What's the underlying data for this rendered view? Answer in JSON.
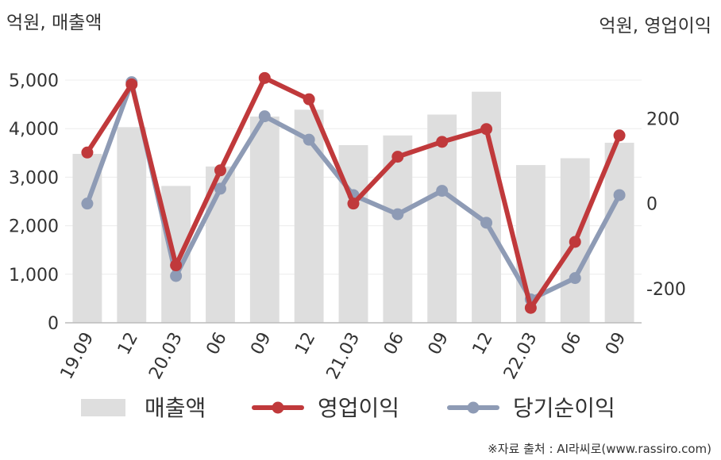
{
  "chart_data": {
    "type": "bar+line",
    "y_left_unit": "억원, 매출액",
    "y_right_unit": "억원, 영업이익",
    "categories": [
      "19.09",
      "12",
      "20.03",
      "06",
      "09",
      "12",
      "21.03",
      "06",
      "09",
      "12",
      "22.03",
      "06",
      "09"
    ],
    "y_left_ticks": [
      "0",
      "1,000",
      "2,000",
      "3,000",
      "4,000",
      "5,000"
    ],
    "y_left_range": [
      0,
      5000
    ],
    "y_right_ticks": [
      "-200",
      "0",
      "200"
    ],
    "y_right_range": [
      -280,
      290
    ],
    "grid": true,
    "legend_position": "bottom",
    "series": [
      {
        "name": "매출액",
        "kind": "bar",
        "axis": "left",
        "color": "#dedede",
        "values": [
          3480,
          4030,
          2820,
          3220,
          4250,
          4390,
          3660,
          3860,
          4290,
          4760,
          3250,
          3390,
          3710
        ]
      },
      {
        "name": "영업이익",
        "kind": "line",
        "axis": "right",
        "color": "#c0393b",
        "values": [
          120,
          280,
          -145,
          78,
          295,
          245,
          0,
          110,
          145,
          175,
          -245,
          -90,
          160
        ]
      },
      {
        "name": "당기순이익",
        "kind": "line",
        "axis": "right",
        "color": "#8e9bb5",
        "values": [
          0,
          285,
          -170,
          35,
          205,
          150,
          20,
          -25,
          30,
          -45,
          -225,
          -175,
          20
        ]
      }
    ]
  },
  "footer": {
    "source": "※자료 출처 : AI라씨로(www.rassiro.com)"
  }
}
